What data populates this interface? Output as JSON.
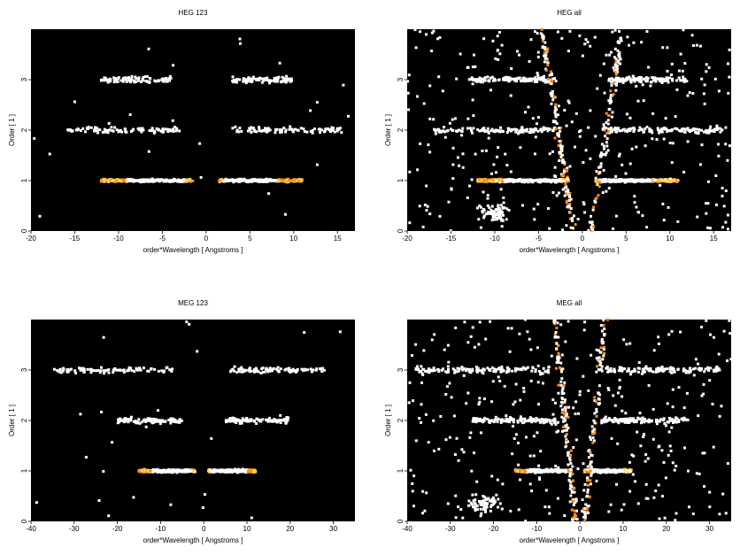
{
  "chart_data": [
    {
      "type": "heatmap",
      "title": "HEG 123",
      "xlabel": "order*Wavelength [ Angstroms ]",
      "ylabel": "Order [ 1 ]",
      "xlim": [
        -20,
        17
      ],
      "ylim": [
        0,
        4
      ],
      "xticks": [
        -20,
        -15,
        -10,
        -5,
        0,
        5,
        10,
        15
      ],
      "yticks": [
        0,
        1,
        2,
        3
      ],
      "colormap": [
        "#000000",
        "#6b0000",
        "#c43a00",
        "#ff8c1a",
        "#ffd24d",
        "#ffffff"
      ],
      "bands": [
        {
          "order": 1,
          "x_min": -12,
          "x_max": -1.5,
          "peak_min": -9,
          "peak_max": -2.5,
          "intensity": 0.92
        },
        {
          "order": 1,
          "x_min": 1.5,
          "x_max": 11,
          "peak_min": 2,
          "peak_max": 8,
          "intensity": 0.92
        },
        {
          "order": 2,
          "x_min": -16,
          "x_max": -3,
          "intensity": 0.35
        },
        {
          "order": 2,
          "x_min": 3,
          "x_max": 15.5,
          "intensity": 0.35
        },
        {
          "order": 3,
          "x_min": -12,
          "x_max": -4,
          "intensity": 0.25
        },
        {
          "order": 3,
          "x_min": 3,
          "x_max": 10,
          "intensity": 0.25
        }
      ]
    },
    {
      "type": "heatmap",
      "title": "HEG all",
      "xlabel": "order*Wavelength [ Angstroms ]",
      "ylabel": "Order [ 1 ]",
      "xlim": [
        -20,
        17
      ],
      "ylim": [
        0,
        4
      ],
      "xticks": [
        -20,
        -15,
        -10,
        -5,
        0,
        5,
        10,
        15
      ],
      "yticks": [
        0,
        1,
        2,
        3
      ],
      "colormap": [
        "#000000",
        "#6b0000",
        "#c43a00",
        "#ff8c1a",
        "#ffd24d",
        "#ffffff"
      ],
      "bands": [
        {
          "order": 1,
          "x_min": -12,
          "x_max": -1.5,
          "peak_min": -9,
          "peak_max": -2.5,
          "intensity": 0.95
        },
        {
          "order": 1,
          "x_min": 1.5,
          "x_max": 11,
          "peak_min": 2,
          "peak_max": 8,
          "intensity": 0.95
        },
        {
          "order": 2,
          "x_min": -17,
          "x_max": -3,
          "intensity": 0.4
        },
        {
          "order": 2,
          "x_min": 3,
          "x_max": 16,
          "intensity": 0.4
        },
        {
          "order": 3,
          "x_min": -13,
          "x_max": -3,
          "intensity": 0.3
        },
        {
          "order": 3,
          "x_min": 3,
          "x_max": 12,
          "intensity": 0.3
        }
      ]
    },
    {
      "type": "heatmap",
      "title": "MEG 123",
      "xlabel": "order*Wavelength [ Angstroms ]",
      "ylabel": "Order [ 1 ]",
      "xlim": [
        -40,
        35
      ],
      "ylim": [
        0,
        4
      ],
      "xticks": [
        -40,
        -30,
        -20,
        -10,
        0,
        10,
        20,
        30
      ],
      "yticks": [
        0,
        1,
        2,
        3
      ],
      "colormap": [
        "#000000",
        "#6b0000",
        "#c43a00",
        "#ff8c1a",
        "#ffd24d",
        "#ffffff"
      ],
      "bands": [
        {
          "order": 1,
          "x_min": -15,
          "x_max": -2,
          "peak_min": -12,
          "peak_max": -3,
          "intensity": 0.92
        },
        {
          "order": 1,
          "x_min": 1,
          "x_max": 12,
          "peak_min": 1.5,
          "peak_max": 10,
          "intensity": 0.92
        },
        {
          "order": 2,
          "x_min": -20,
          "x_max": -5,
          "intensity": 0.3
        },
        {
          "order": 2,
          "x_min": 5,
          "x_max": 20,
          "intensity": 0.3
        },
        {
          "order": 3,
          "x_min": -35,
          "x_max": -7,
          "intensity": 0.35
        },
        {
          "order": 3,
          "x_min": 6,
          "x_max": 28,
          "intensity": 0.35
        }
      ]
    },
    {
      "type": "heatmap",
      "title": "MEG all",
      "xlabel": "order*Wavelength [ Angstroms ]",
      "ylabel": "Order [ 1 ]",
      "xlim": [
        -40,
        35
      ],
      "ylim": [
        0,
        4
      ],
      "xticks": [
        -40,
        -30,
        -20,
        -10,
        0,
        10,
        20,
        30
      ],
      "yticks": [
        0,
        1,
        2,
        3
      ],
      "colormap": [
        "#000000",
        "#6b0000",
        "#c43a00",
        "#ff8c1a",
        "#ffd24d",
        "#ffffff"
      ],
      "bands": [
        {
          "order": 1,
          "x_min": -15,
          "x_max": -2,
          "peak_min": -12,
          "peak_max": -3,
          "intensity": 0.95
        },
        {
          "order": 1,
          "x_min": 1,
          "x_max": 12,
          "peak_min": 1.5,
          "peak_max": 10,
          "intensity": 0.95
        },
        {
          "order": 2,
          "x_min": -25,
          "x_max": -5,
          "intensity": 0.35
        },
        {
          "order": 2,
          "x_min": 5,
          "x_max": 25,
          "intensity": 0.35
        },
        {
          "order": 3,
          "x_min": -38,
          "x_max": -7,
          "intensity": 0.4
        },
        {
          "order": 3,
          "x_min": 6,
          "x_max": 32,
          "intensity": 0.4
        }
      ]
    }
  ]
}
